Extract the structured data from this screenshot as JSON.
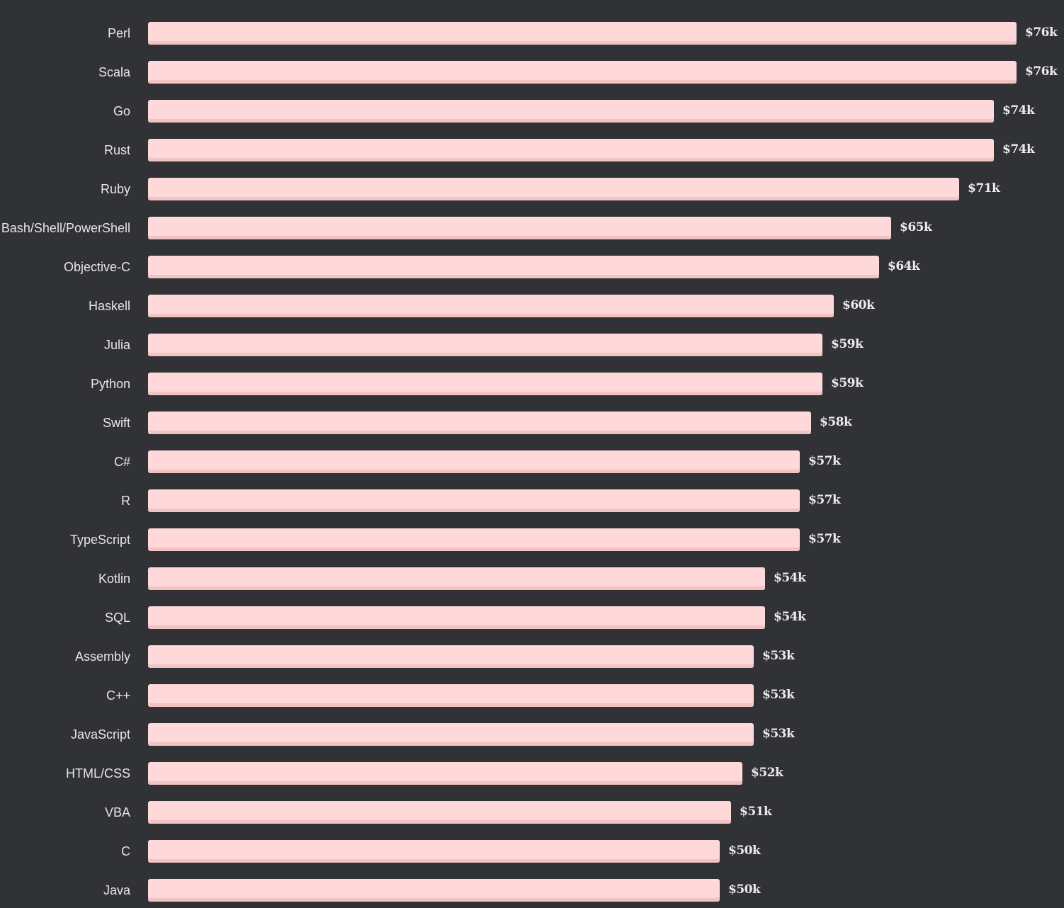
{
  "chart_data": {
    "type": "bar",
    "orientation": "horizontal",
    "categories": [
      "Perl",
      "Scala",
      "Go",
      "Rust",
      "Ruby",
      "Bash/Shell/PowerShell",
      "Objective-C",
      "Haskell",
      "Julia",
      "Python",
      "Swift",
      "C#",
      "R",
      "TypeScript",
      "Kotlin",
      "SQL",
      "Assembly",
      "C++",
      "JavaScript",
      "HTML/CSS",
      "VBA",
      "C",
      "Java"
    ],
    "values": [
      76,
      76,
      74,
      74,
      71,
      65,
      64,
      60,
      59,
      59,
      58,
      57,
      57,
      57,
      54,
      54,
      53,
      53,
      53,
      52,
      51,
      50,
      50
    ],
    "labels": [
      "$76k",
      "$76k",
      "$74k",
      "$74k",
      "$71k",
      "$65k",
      "$64k",
      "$60k",
      "$59k",
      "$59k",
      "$58k",
      "$57k",
      "$57k",
      "$57k",
      "$54k",
      "$54k",
      "$53k",
      "$53k",
      "$53k",
      "$52k",
      "$51k",
      "$50k",
      "$50k"
    ],
    "unit": "$k",
    "xlim": [
      0,
      76
    ],
    "grid": false,
    "legend": "none",
    "colors": {
      "background": "#303235",
      "bar": "#ffd9d9",
      "bar_shadow": "#f2c3c3",
      "text": "#e6e6e6"
    }
  }
}
